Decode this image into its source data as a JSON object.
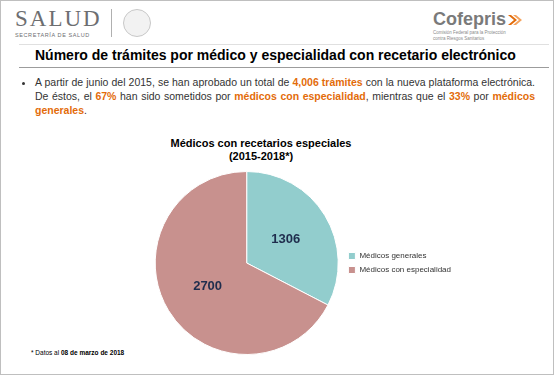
{
  "header": {
    "logo_left": "SALUD",
    "logo_left_sub": "SECRETARÍA DE SALUD",
    "logo_right": "Cofepris",
    "logo_right_sub": "Comisión Federal para la Protección contra Riesgos Sanitarios"
  },
  "title": "Número de trámites por médico y especialidad con recetario electrónico",
  "bullet": [
    {
      "text": "A partir de junio del 2015, se han aprobado un total de ",
      "highlight": false
    },
    {
      "text": "4,006 trámites",
      "highlight": true
    },
    {
      "text": " con la nueva plataforma electrónica. De éstos, el ",
      "highlight": false
    },
    {
      "text": "67%",
      "highlight": true
    },
    {
      "text": " han sido sometidos por ",
      "highlight": false
    },
    {
      "text": "médicos con especialidad",
      "highlight": true
    },
    {
      "text": ", mientras que el ",
      "highlight": false
    },
    {
      "text": "33%",
      "highlight": true
    },
    {
      "text": " por ",
      "highlight": false
    },
    {
      "text": "médicos generales",
      "highlight": true
    },
    {
      "text": ".",
      "highlight": false
    }
  ],
  "chart_data": {
    "type": "pie",
    "title": "Médicos con recetarios especiales",
    "subtitle": "(2015-2018*)",
    "categories": [
      "Médicos generales",
      "Médicos con especialidad"
    ],
    "values": [
      1306,
      2700
    ],
    "colors": [
      "#92cdcd",
      "#c8918e"
    ],
    "data_labels": true,
    "legend": "right"
  },
  "footnote": [
    {
      "text": "* Datos al ",
      "highlight": false
    },
    {
      "text": "08 de marzo de 2018",
      "highlight": true
    }
  ]
}
